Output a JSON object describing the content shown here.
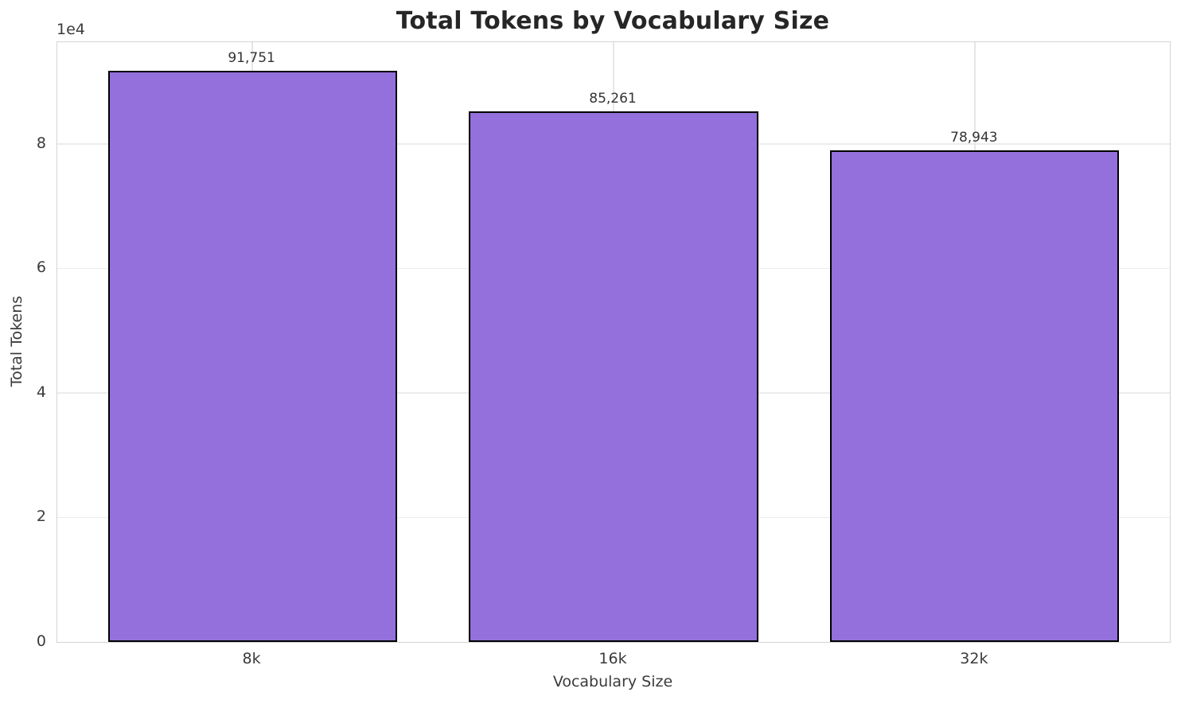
{
  "chart_data": {
    "type": "bar",
    "title": "Total Tokens by Vocabulary Size",
    "categories": [
      "8k",
      "16k",
      "32k"
    ],
    "values": [
      91751,
      85261,
      78943
    ],
    "value_labels": [
      "91,751",
      "85,261",
      "78,943"
    ],
    "xlabel": "Vocabulary Size",
    "ylabel": "Total Tokens",
    "ylim": [
      0,
      96339
    ],
    "yticks": [
      0,
      20000,
      40000,
      60000,
      80000
    ],
    "ytick_labels": [
      "0",
      "2",
      "4",
      "6",
      "8"
    ],
    "y_offset_text": "1e4",
    "grid": true,
    "legend": null,
    "bar_color": "#9370DB",
    "bar_edge_color": "#000000"
  }
}
